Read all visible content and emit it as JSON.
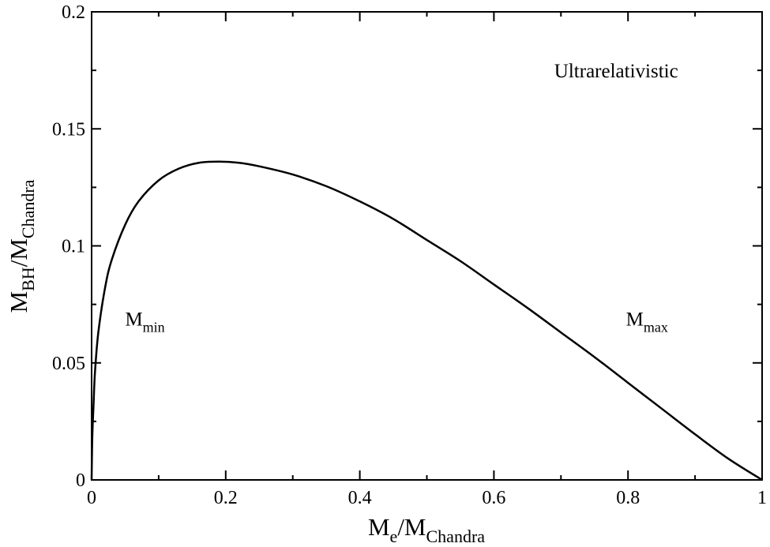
{
  "chart_data": {
    "type": "line",
    "title": "",
    "xlabel": {
      "main": "M",
      "sub1": "e",
      "sep": "/M",
      "sub2": "Chandra"
    },
    "ylabel": {
      "main": "M",
      "sub1": "BH",
      "sep": "/M",
      "sub2": "Chandra"
    },
    "xlim": [
      0,
      1
    ],
    "ylim": [
      0,
      0.2
    ],
    "xticks": [
      0,
      0.2,
      0.4,
      0.6,
      0.8,
      1
    ],
    "xtick_labels": [
      "0",
      "0.2",
      "0.4",
      "0.6",
      "0.8",
      "1"
    ],
    "yticks": [
      0,
      0.05,
      0.1,
      0.15,
      0.2
    ],
    "ytick_labels": [
      "0",
      "0.05",
      "0.1",
      "0.15",
      "0.2"
    ],
    "grid": false,
    "legend": "none",
    "annotations": [
      {
        "text": "Ultrarelativistic",
        "x": 0.69,
        "y": 0.172
      },
      {
        "main": "M",
        "sub": "min",
        "x": 0.05,
        "y": 0.066
      },
      {
        "main": "M",
        "sub": "max",
        "x": 0.797,
        "y": 0.066
      }
    ],
    "series": [
      {
        "color": "#000000",
        "x": [
          0,
          0.001,
          0.003,
          0.005,
          0.01,
          0.02,
          0.03,
          0.05,
          0.07,
          0.1,
          0.13,
          0.16,
          0.19,
          0.22,
          0.25,
          0.3,
          0.35,
          0.4,
          0.45,
          0.5,
          0.55,
          0.6,
          0.65,
          0.7,
          0.75,
          0.8,
          0.85,
          0.9,
          0.95,
          1.0
        ],
        "y": [
          0,
          0.018,
          0.033,
          0.046,
          0.063,
          0.082,
          0.094,
          0.109,
          0.119,
          0.128,
          0.133,
          0.1355,
          0.136,
          0.1355,
          0.134,
          0.1305,
          0.1255,
          0.119,
          0.1115,
          0.1025,
          0.0935,
          0.0835,
          0.0735,
          0.063,
          0.0525,
          0.0415,
          0.0305,
          0.0195,
          0.009,
          0
        ]
      }
    ]
  }
}
